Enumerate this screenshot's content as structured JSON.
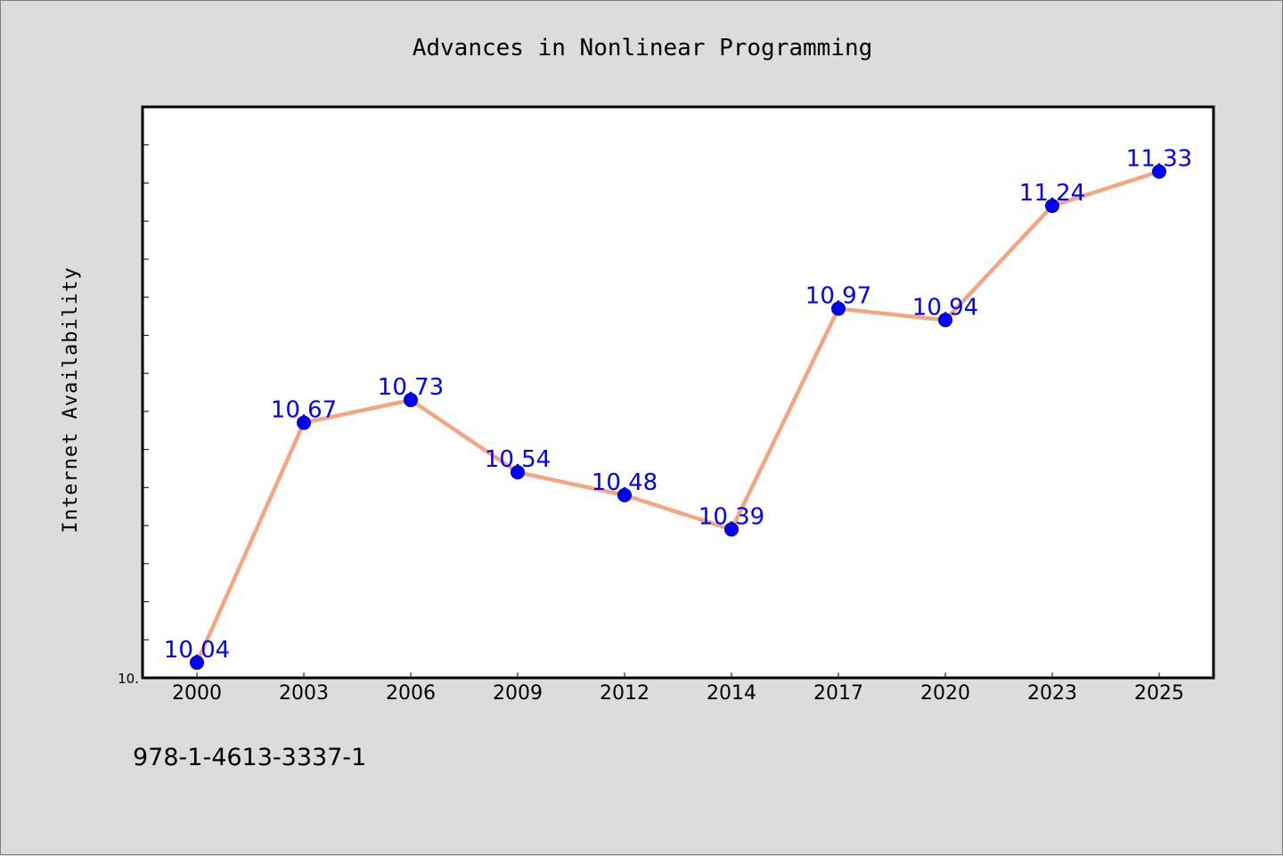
{
  "chart_data": {
    "type": "line",
    "title": "Advances in Nonlinear Programming",
    "xlabel": "",
    "ylabel": "Internet Availability",
    "categories": [
      "2000",
      "2003",
      "2006",
      "2009",
      "2012",
      "2014",
      "2017",
      "2020",
      "2023",
      "2025"
    ],
    "series": [
      {
        "values": [
          10.04,
          10.67,
          10.73,
          10.54,
          10.48,
          10.39,
          10.97,
          10.94,
          11.24,
          11.33
        ],
        "labels": [
          "10.04",
          "10.67",
          "10.73",
          "10.54",
          "10.48",
          "10.39",
          "10.97",
          "10.94",
          "11.24",
          "11.33"
        ]
      }
    ],
    "ytick_label": "10.",
    "ylim": [
      10.0,
      11.5
    ],
    "grid": false,
    "line_color": "#f4a582",
    "marker_color": "#0000ff",
    "label_color": "#0000ff",
    "plot_background": "#ffffff",
    "page_background": "#dcdcdc"
  },
  "footer": {
    "id_text": "978-1-4613-3337-1"
  }
}
